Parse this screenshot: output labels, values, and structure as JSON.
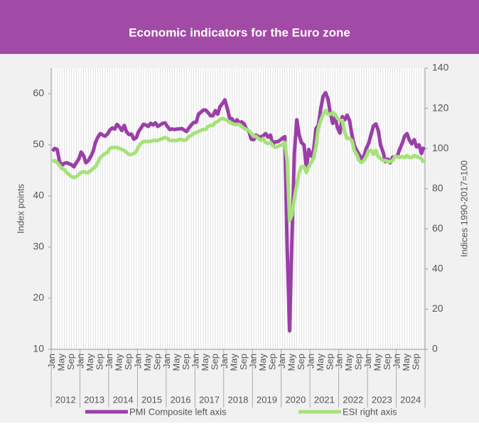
{
  "chart_data": {
    "type": "line",
    "title": "Economic indicators for the Euro zone",
    "y_label": "Index points",
    "y2_label": "Indices 1990-2017=100",
    "categories": [
      "Jan",
      null,
      null,
      null,
      "May",
      null,
      null,
      null,
      "Sep",
      null,
      null,
      null,
      "Jan",
      null,
      null,
      null,
      "May",
      null,
      null,
      null,
      "Sep",
      null,
      null,
      null,
      "Jan",
      null,
      null,
      null,
      "May",
      null,
      null,
      null,
      "Sep",
      null,
      null,
      null,
      "Jan",
      null,
      null,
      null,
      "May",
      null,
      null,
      null,
      "Sep",
      null,
      null,
      null,
      "Jan",
      null,
      null,
      null,
      "May",
      null,
      null,
      null,
      "Sep",
      null,
      null,
      null,
      "Jan",
      null,
      null,
      null,
      "May",
      null,
      null,
      null,
      "Sep",
      null,
      null,
      null,
      "Jan",
      null,
      null,
      null,
      "May",
      null,
      null,
      null,
      "Sep",
      null,
      null,
      null,
      "Jan",
      null,
      null,
      null,
      "May",
      null,
      null,
      null,
      "Sep",
      null,
      null,
      null,
      "Jan",
      null,
      null,
      null,
      "May",
      null,
      null,
      null,
      "Sep",
      null,
      null,
      null,
      "Jan",
      null,
      null,
      null,
      "May",
      null,
      null,
      null,
      "Sep",
      null,
      null,
      null,
      "Jan",
      null,
      null,
      null,
      "May",
      null,
      null,
      null,
      "Sep",
      null,
      null,
      null,
      "Jan",
      null,
      null,
      null,
      "May",
      null,
      null,
      null,
      "Sep",
      null,
      null,
      null,
      "Jan",
      null,
      null,
      null,
      "May",
      null,
      null,
      null,
      "Sep",
      null,
      null,
      null
    ],
    "years": [
      "2012",
      "2013",
      "2014",
      "2015",
      "2016",
      "2017",
      "2018",
      "2019",
      "2020",
      "2021",
      "2022",
      "2023",
      "2024"
    ],
    "series": [
      {
        "name": "PMI Composite left axis",
        "color": "#9b3fa8",
        "axis": "y",
        "values": [
          48.8,
          49.3,
          49.1,
          46.7,
          46.0,
          46.4,
          46.5,
          46.3,
          46.1,
          45.7,
          46.5,
          47.2,
          48.6,
          47.9,
          46.5,
          46.9,
          47.7,
          48.7,
          50.5,
          51.5,
          52.2,
          51.9,
          51.7,
          52.1,
          52.9,
          53.3,
          53.1,
          54.0,
          53.5,
          52.8,
          53.8,
          52.5,
          52.0,
          52.1,
          51.1,
          51.4,
          52.6,
          53.3,
          54.0,
          53.9,
          53.6,
          54.2,
          53.9,
          54.3,
          53.6,
          53.9,
          54.2,
          54.3,
          53.6,
          53.0,
          53.1,
          53.0,
          53.1,
          53.1,
          53.2,
          52.9,
          52.6,
          53.3,
          53.9,
          54.4,
          54.4,
          56.0,
          56.4,
          56.8,
          56.8,
          56.3,
          55.7,
          55.7,
          56.7,
          56.0,
          57.5,
          58.1,
          58.8,
          57.1,
          55.2,
          55.1,
          54.1,
          54.9,
          54.3,
          54.5,
          54.1,
          53.1,
          52.7,
          51.1,
          51.0,
          51.9,
          51.6,
          51.5,
          51.8,
          52.2,
          51.5,
          51.9,
          50.1,
          50.6,
          50.6,
          50.9,
          51.3,
          51.6,
          29.7,
          13.6,
          31.9,
          48.5,
          54.9,
          51.9,
          50.4,
          50.0,
          45.3,
          49.1,
          47.8,
          48.8,
          53.2,
          53.8,
          57.1,
          59.5,
          60.2,
          59.0,
          56.2,
          54.2,
          55.4,
          53.3,
          52.3,
          55.5,
          54.9,
          55.8,
          54.8,
          52.0,
          49.9,
          48.9,
          48.1,
          47.3,
          47.8,
          49.3,
          50.3,
          52.0,
          53.7,
          54.1,
          52.8,
          49.9,
          48.6,
          46.7,
          47.2,
          46.5,
          47.6,
          47.6,
          47.9,
          49.2,
          50.3,
          51.7,
          52.2,
          50.9,
          50.2,
          51.0,
          49.6,
          50.0,
          48.3,
          49.6
        ]
      },
      {
        "name": "ESI right axis",
        "color": "#a6e27a",
        "axis": "y2",
        "values": [
          93.5,
          94,
          93,
          91.5,
          90,
          89.5,
          88,
          87,
          86,
          85.5,
          86,
          87,
          88,
          88.5,
          88,
          88,
          89,
          90,
          91,
          93,
          95.5,
          96.5,
          97.5,
          98,
          100,
          100.5,
          100.5,
          100.5,
          100,
          99.5,
          99,
          98,
          97,
          97,
          97.5,
          98.5,
          101,
          102.5,
          103.5,
          103.5,
          103.5,
          103.5,
          104,
          104,
          104,
          104.5,
          105,
          105.5,
          105,
          104,
          104,
          104,
          104,
          104.5,
          104.5,
          104,
          104.5,
          106,
          106.5,
          107.5,
          108,
          108.5,
          109,
          109.5,
          109.5,
          111,
          111.5,
          111.5,
          113,
          113.5,
          114.5,
          115,
          114.5,
          114,
          113,
          112.5,
          112,
          112,
          112,
          111,
          110,
          109.5,
          109,
          107.5,
          106,
          106,
          105,
          104,
          105,
          103,
          102.5,
          103,
          101.5,
          100.5,
          101,
          101.5,
          102,
          103,
          94,
          64,
          67,
          75,
          82,
          88,
          91,
          91,
          88,
          91,
          93,
          95,
          101,
          110,
          114,
          117,
          119,
          117,
          117,
          118,
          117,
          115,
          114,
          114,
          108,
          105,
          105,
          104,
          99,
          97,
          94,
          93,
          94,
          96,
          99,
          99,
          97,
          99,
          96,
          95,
          94,
          94,
          93.5,
          93.5,
          94,
          96,
          96,
          95.5,
          96,
          95.5,
          96.5,
          95.5,
          95.5,
          96.5,
          96,
          95.5,
          95,
          93
        ]
      }
    ],
    "ylim": [
      10,
      65
    ],
    "yticks": [
      10,
      20,
      30,
      40,
      50,
      60
    ],
    "y2lim": [
      0,
      140
    ],
    "y2ticks": [
      0,
      20,
      40,
      60,
      80,
      100,
      120,
      140
    ],
    "grid": "x"
  }
}
